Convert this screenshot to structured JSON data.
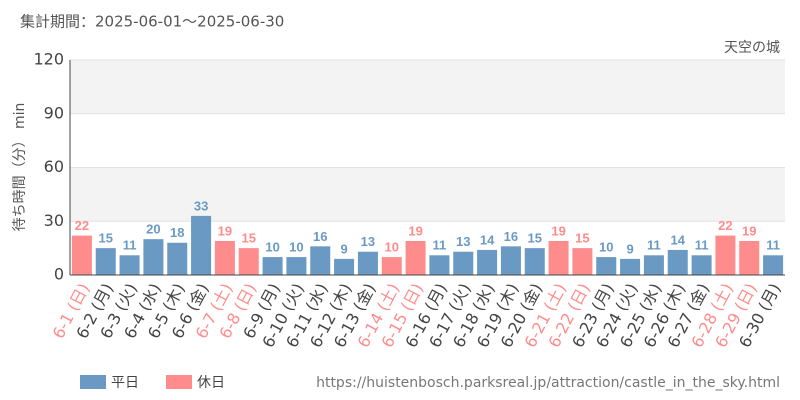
{
  "chart_data": {
    "type": "bar",
    "title": "集計期間：2025-06-01～2025-06-30",
    "subtitle": "天空の城",
    "y_label": "待ち時間（分） min",
    "source": "https://huistenbosch.parksreal.jp/attraction/castle_in_the_sky.html",
    "categories": [
      "6-1 (日)",
      "6-2 (月)",
      "6-3 (火)",
      "6-4 (水)",
      "6-5 (木)",
      "6-6 (金)",
      "6-7 (土)",
      "6-8 (日)",
      "6-9 (月)",
      "6-10 (火)",
      "6-11 (水)",
      "6-12 (木)",
      "6-13 (金)",
      "6-14 (土)",
      "6-15 (日)",
      "6-16 (月)",
      "6-17 (火)",
      "6-18 (水)",
      "6-19 (木)",
      "6-20 (金)",
      "6-21 (土)",
      "6-22 (日)",
      "6-23 (月)",
      "6-24 (火)",
      "6-25 (水)",
      "6-26 (木)",
      "6-27 (金)",
      "6-28 (土)",
      "6-29 (日)",
      "6-30 (月)"
    ],
    "series": [
      {
        "name": "平日",
        "color": "#6a9ac4",
        "values": [
          null,
          15,
          11,
          20,
          18,
          33,
          null,
          null,
          10,
          10,
          16,
          9,
          13,
          null,
          null,
          11,
          13,
          14,
          16,
          15,
          null,
          null,
          10,
          9,
          11,
          14,
          11,
          null,
          null,
          11
        ]
      },
      {
        "name": "休日",
        "color": "#ff8c8c",
        "values": [
          22,
          null,
          null,
          null,
          null,
          null,
          19,
          15,
          null,
          null,
          null,
          null,
          null,
          10,
          19,
          null,
          null,
          null,
          null,
          null,
          19,
          15,
          null,
          null,
          null,
          null,
          null,
          22,
          19,
          null
        ]
      }
    ],
    "ylim": [
      0,
      120
    ],
    "yticks": [
      0,
      30,
      60,
      90,
      120
    ],
    "grid": true
  }
}
